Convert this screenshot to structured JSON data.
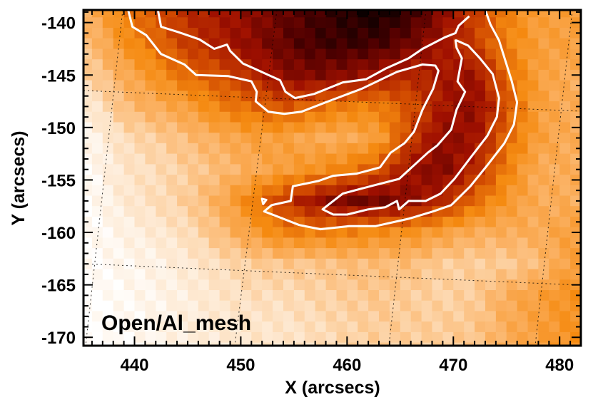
{
  "chart_data": {
    "type": "heatmap",
    "title": "",
    "annotation": "Open/Al_mesh",
    "xlabel": "X (arcsecs)",
    "ylabel": "Y (arcsecs)",
    "xlim": [
      435.2,
      482
    ],
    "ylim": [
      -170.8,
      -138.8
    ],
    "xticks": [
      440,
      450,
      460,
      470,
      480
    ],
    "yticks": [
      -140,
      -145,
      -150,
      -155,
      -160,
      -165,
      -170
    ],
    "xtick_labels": [
      "440",
      "450",
      "460",
      "470",
      "480"
    ],
    "ytick_labels": [
      "-140",
      "-145",
      "-150",
      "-155",
      "-160",
      "-165",
      "-170"
    ],
    "colormap": [
      "#ffffff",
      "#fde0c0",
      "#fbb060",
      "#f58a10",
      "#d04800",
      "#a01000",
      "#500000",
      "#000000"
    ],
    "contour_color": "#ffffff",
    "grid": "heliographic dotted grid",
    "intensity_grid": {
      "x": [
        436,
        439,
        442,
        445,
        448,
        451,
        454,
        457,
        460,
        463,
        466,
        469,
        472,
        475,
        478,
        481
      ],
      "y": [
        -139,
        -142,
        -145,
        -148,
        -151,
        -154,
        -157,
        -160,
        -163,
        -166,
        -169
      ],
      "z": [
        [
          0.3,
          0.45,
          0.55,
          0.65,
          0.7,
          0.75,
          0.82,
          0.88,
          0.93,
          0.97,
          0.9,
          0.75,
          0.6,
          0.45,
          0.35,
          0.35
        ],
        [
          0.25,
          0.4,
          0.5,
          0.6,
          0.68,
          0.75,
          0.82,
          0.88,
          0.9,
          0.88,
          0.8,
          0.7,
          0.6,
          0.45,
          0.35,
          0.35
        ],
        [
          0.2,
          0.3,
          0.4,
          0.5,
          0.55,
          0.65,
          0.75,
          0.78,
          0.75,
          0.7,
          0.65,
          0.7,
          0.72,
          0.5,
          0.35,
          0.3
        ],
        [
          0.1,
          0.25,
          0.3,
          0.35,
          0.45,
          0.5,
          0.55,
          0.5,
          0.45,
          0.45,
          0.55,
          0.7,
          0.75,
          0.55,
          0.35,
          0.3
        ],
        [
          0.05,
          0.15,
          0.2,
          0.25,
          0.3,
          0.35,
          0.35,
          0.3,
          0.3,
          0.35,
          0.6,
          0.75,
          0.72,
          0.5,
          0.35,
          0.3
        ],
        [
          0.03,
          0.12,
          0.15,
          0.2,
          0.25,
          0.3,
          0.35,
          0.4,
          0.45,
          0.55,
          0.72,
          0.78,
          0.65,
          0.45,
          0.3,
          0.3
        ],
        [
          0.02,
          0.1,
          0.15,
          0.2,
          0.3,
          0.45,
          0.6,
          0.72,
          0.8,
          0.8,
          0.75,
          0.65,
          0.5,
          0.38,
          0.3,
          0.3
        ],
        [
          0.02,
          0.06,
          0.1,
          0.15,
          0.25,
          0.35,
          0.45,
          0.45,
          0.45,
          0.42,
          0.4,
          0.35,
          0.3,
          0.3,
          0.3,
          0.35
        ],
        [
          0.02,
          0.04,
          0.06,
          0.1,
          0.15,
          0.2,
          0.22,
          0.22,
          0.25,
          0.25,
          0.25,
          0.2,
          0.2,
          0.2,
          0.25,
          0.35
        ],
        [
          0.0,
          0.03,
          0.05,
          0.08,
          0.12,
          0.15,
          0.15,
          0.18,
          0.2,
          0.22,
          0.2,
          0.18,
          0.2,
          0.3,
          0.35,
          0.4
        ],
        [
          0.0,
          0.02,
          0.05,
          0.08,
          0.1,
          0.12,
          0.12,
          0.15,
          0.18,
          0.2,
          0.2,
          0.2,
          0.22,
          0.3,
          0.35,
          0.4
        ]
      ]
    },
    "contours": [
      {
        "closed": false,
        "points": [
          [
            442.2,
            -138.8
          ],
          [
            442.5,
            -140.4
          ],
          [
            444.1,
            -140.9
          ],
          [
            446.1,
            -141.6
          ],
          [
            447.5,
            -142.5
          ],
          [
            448.7,
            -142.1
          ],
          [
            449.0,
            -142.7
          ],
          [
            450.2,
            -143.9
          ],
          [
            451.3,
            -144.4
          ],
          [
            453.7,
            -145.5
          ],
          [
            454.2,
            -146.6
          ],
          [
            455.1,
            -147.2
          ],
          [
            456.9,
            -146.8
          ],
          [
            459.6,
            -145.7
          ],
          [
            461.8,
            -145.4
          ],
          [
            463.6,
            -144.4
          ],
          [
            465.8,
            -143.4
          ],
          [
            467.1,
            -142.5
          ],
          [
            469.2,
            -141.4
          ],
          [
            470.2,
            -141.0
          ],
          [
            470.5,
            -140.3
          ],
          [
            471.5,
            -139.4
          ]
        ]
      },
      {
        "closed": false,
        "points": [
          [
            439.4,
            -138.8
          ],
          [
            439.8,
            -140.4
          ],
          [
            441.1,
            -141.2
          ],
          [
            442.5,
            -143.0
          ],
          [
            444.7,
            -144.0
          ],
          [
            445.8,
            -145.0
          ],
          [
            448.8,
            -145.1
          ],
          [
            451.0,
            -145.6
          ],
          [
            451.5,
            -146.6
          ],
          [
            451.4,
            -147.5
          ],
          [
            452.6,
            -148.5
          ],
          [
            454.1,
            -148.7
          ],
          [
            455.7,
            -148.5
          ],
          [
            458.0,
            -147.6
          ],
          [
            461.4,
            -146.3
          ],
          [
            464.7,
            -144.7
          ],
          [
            467.1,
            -144.0
          ],
          [
            468.3,
            -144.1
          ],
          [
            468.6,
            -144.6
          ],
          [
            468.1,
            -146.3
          ],
          [
            467.1,
            -148.3
          ],
          [
            466.3,
            -150.4
          ],
          [
            465.4,
            -151.5
          ],
          [
            464.1,
            -152.4
          ],
          [
            463.1,
            -153.8
          ],
          [
            460.9,
            -154.4
          ],
          [
            458.7,
            -154.6
          ],
          [
            457.3,
            -155.1
          ],
          [
            454.9,
            -155.6
          ],
          [
            454.7,
            -157.0
          ],
          [
            452.9,
            -157.4
          ],
          [
            452.2,
            -158.0
          ],
          [
            453.5,
            -158.5
          ],
          [
            455.5,
            -159.3
          ],
          [
            457.5,
            -159.7
          ],
          [
            460.2,
            -159.4
          ],
          [
            462.7,
            -159.4
          ],
          [
            465.8,
            -158.7
          ],
          [
            468.1,
            -158.0
          ],
          [
            469.8,
            -157.4
          ],
          [
            471.6,
            -155.6
          ],
          [
            473.2,
            -153.6
          ],
          [
            474.8,
            -151.5
          ],
          [
            475.7,
            -149.7
          ],
          [
            476.0,
            -147.6
          ],
          [
            475.5,
            -145.6
          ],
          [
            474.3,
            -141.7
          ],
          [
            473.5,
            -140.2
          ],
          [
            473.0,
            -138.8
          ]
        ]
      },
      {
        "closed": true,
        "points": [
          [
            470.2,
            -141.7
          ],
          [
            470.3,
            -142.4
          ],
          [
            470.8,
            -143.4
          ],
          [
            470.4,
            -145.6
          ],
          [
            471.1,
            -146.6
          ],
          [
            470.3,
            -148.3
          ],
          [
            469.8,
            -150.2
          ],
          [
            468.5,
            -151.7
          ],
          [
            467.6,
            -152.4
          ],
          [
            466.3,
            -153.6
          ],
          [
            464.9,
            -154.9
          ],
          [
            462.2,
            -155.6
          ],
          [
            459.6,
            -156.3
          ],
          [
            458.7,
            -157.0
          ],
          [
            457.7,
            -157.8
          ],
          [
            458.7,
            -158.3
          ],
          [
            460.0,
            -158.3
          ],
          [
            462.0,
            -157.8
          ],
          [
            463.6,
            -157.6
          ],
          [
            464.7,
            -157.0
          ],
          [
            464.9,
            -157.8
          ],
          [
            465.8,
            -157.0
          ],
          [
            467.4,
            -157.0
          ],
          [
            468.8,
            -156.3
          ],
          [
            470.1,
            -154.9
          ],
          [
            471.6,
            -152.9
          ],
          [
            473.2,
            -150.8
          ],
          [
            474.1,
            -149.0
          ],
          [
            474.3,
            -147.2
          ],
          [
            473.7,
            -144.9
          ],
          [
            472.5,
            -143.4
          ],
          [
            471.4,
            -142.2
          ],
          [
            470.3,
            -141.7
          ]
        ]
      },
      {
        "closed": true,
        "points": [
          [
            452.0,
            -156.8
          ],
          [
            452.4,
            -156.9
          ],
          [
            452.1,
            -157.3
          ]
        ]
      }
    ]
  }
}
